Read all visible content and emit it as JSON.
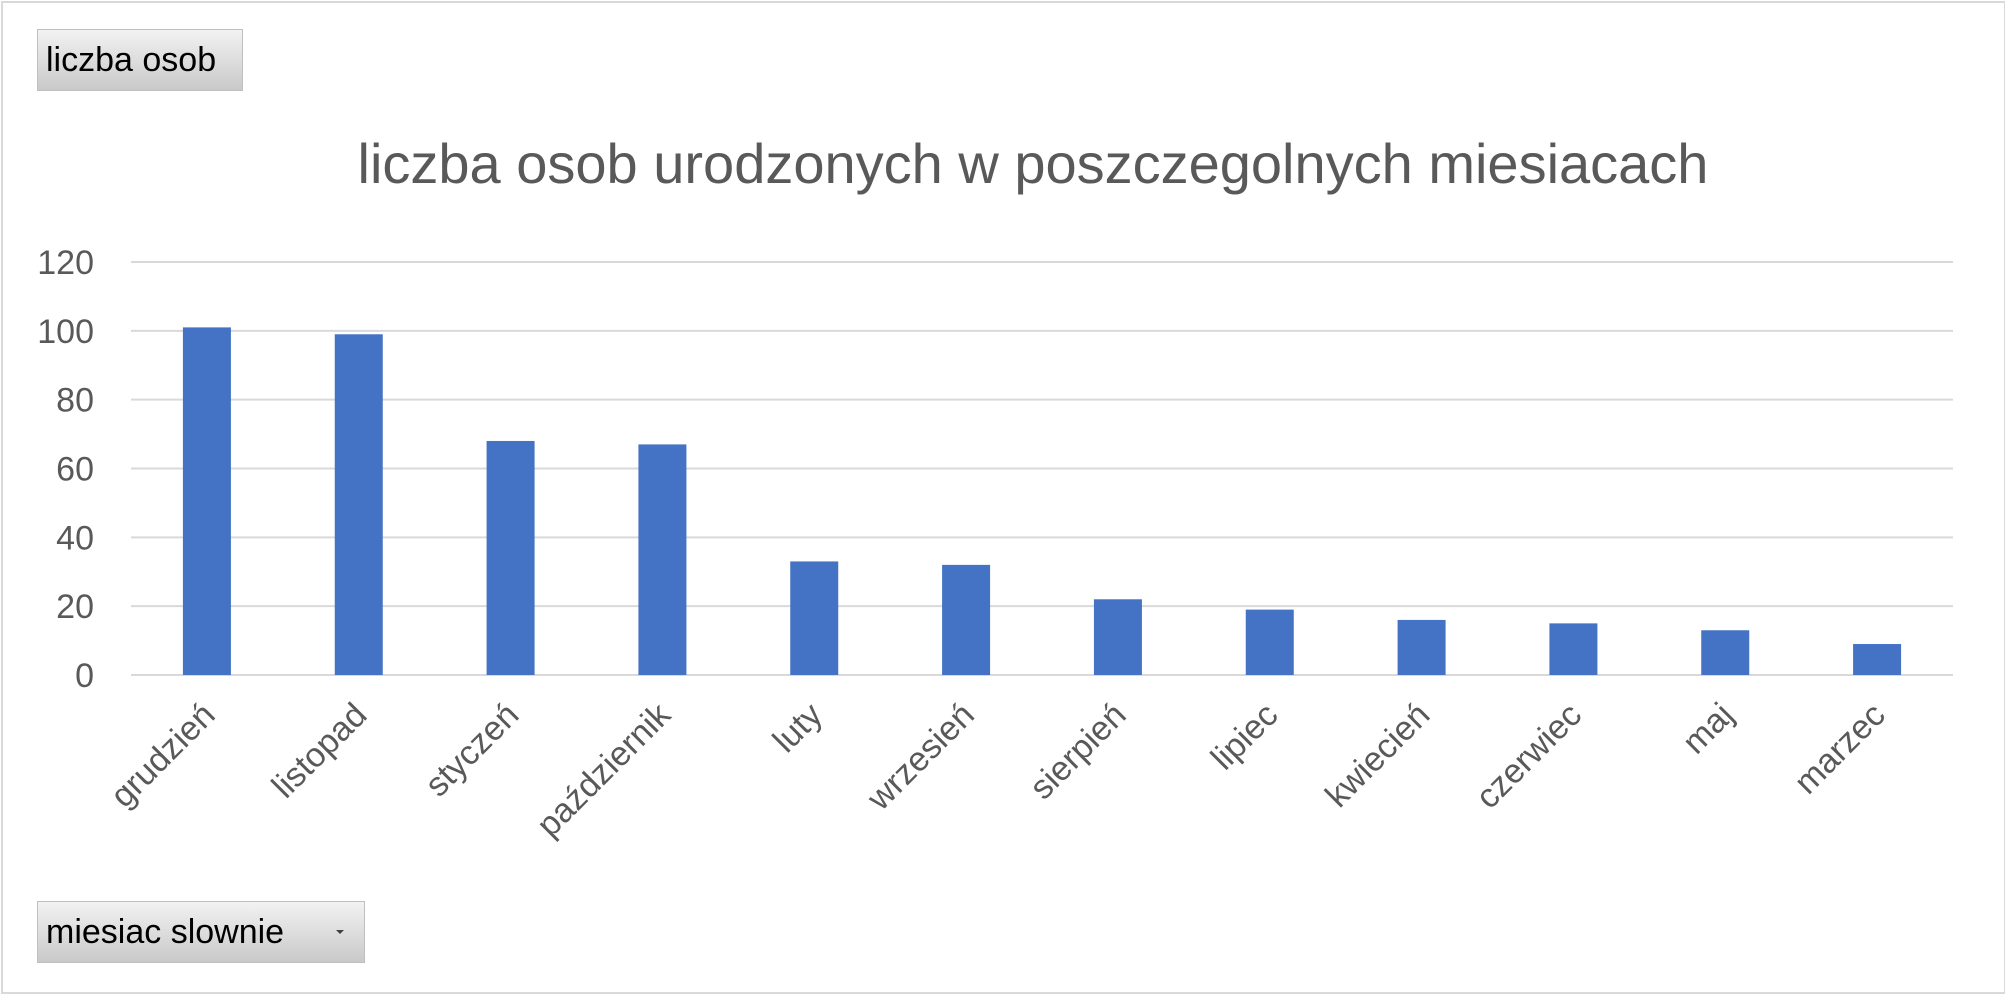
{
  "field_buttons": {
    "values_label": "liczba osob",
    "axis_label": "miesiac slownie"
  },
  "chart_data": {
    "type": "bar",
    "title": "liczba osob urodzonych w poszczegolnych miesiacach",
    "xlabel": "",
    "ylabel": "",
    "ylim": [
      0,
      120
    ],
    "yticks": [
      0,
      20,
      40,
      60,
      80,
      100,
      120
    ],
    "grid": true,
    "legend": "none",
    "bar_color": "#4472c4",
    "categories": [
      "grudzień",
      "listopad",
      "styczeń",
      "październik",
      "luty",
      "wrzesień",
      "sierpień",
      "lipiec",
      "kwiecień",
      "czerwiec",
      "maj",
      "marzec"
    ],
    "series": [
      {
        "values": [
          101,
          99,
          68,
          67,
          33,
          32,
          22,
          19,
          16,
          15,
          13,
          9
        ]
      }
    ]
  }
}
